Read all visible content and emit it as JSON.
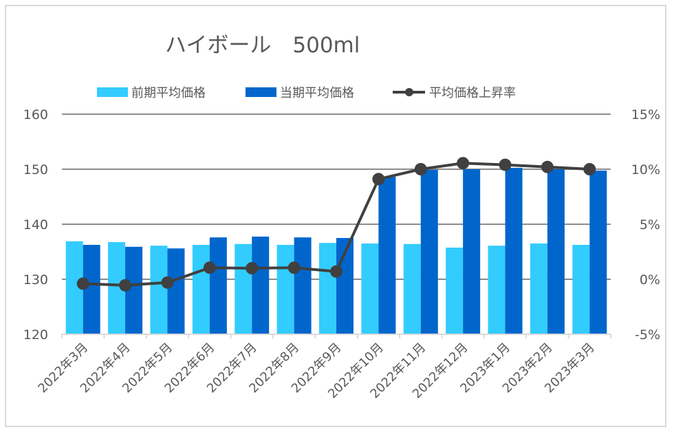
{
  "chart_data": {
    "type": "bar",
    "title": "ハイボール　500ml",
    "xlabel": "",
    "ylabel": "",
    "y2label": "",
    "categories": [
      "2022年3月",
      "2022年4月",
      "2022年5月",
      "2022年6月",
      "2022年7月",
      "2022年8月",
      "2022年9月",
      "2022年10月",
      "2022年11月",
      "2022年12月",
      "2023年1月",
      "2023年2月",
      "2023年3月"
    ],
    "series": [
      {
        "name": "前期平均価格",
        "kind": "bar",
        "axis": "left",
        "color": "#33CCFF",
        "values": [
          136.9,
          136.75,
          136.1,
          136.25,
          136.4,
          136.25,
          136.6,
          136.5,
          136.4,
          135.75,
          136.1,
          136.5,
          136.25
        ]
      },
      {
        "name": "当期平均価格",
        "kind": "bar",
        "axis": "left",
        "color": "#0066CC",
        "values": [
          136.25,
          135.9,
          135.6,
          137.6,
          137.75,
          137.6,
          137.5,
          148.6,
          149.9,
          150.0,
          150.25,
          150.0,
          149.75
        ]
      },
      {
        "name": "平均価格上昇率",
        "kind": "line",
        "axis": "right",
        "color": "#404040",
        "values": [
          -0.4,
          -0.55,
          -0.3,
          1.05,
          1.0,
          1.05,
          0.7,
          9.1,
          10.0,
          10.55,
          10.4,
          10.2,
          10.0
        ]
      }
    ],
    "ylim": [
      120,
      160
    ],
    "yticks": [
      120,
      130,
      140,
      150,
      160
    ],
    "ytick_labels": [
      "120",
      "130",
      "140",
      "150",
      "160"
    ],
    "y2lim": [
      -5,
      15
    ],
    "y2ticks": [
      -5,
      0,
      5,
      10,
      15
    ],
    "y2tick_labels": [
      "-5%",
      "0%",
      "5%",
      "10%",
      "15%"
    ],
    "grid": true,
    "legend_position": "top"
  }
}
